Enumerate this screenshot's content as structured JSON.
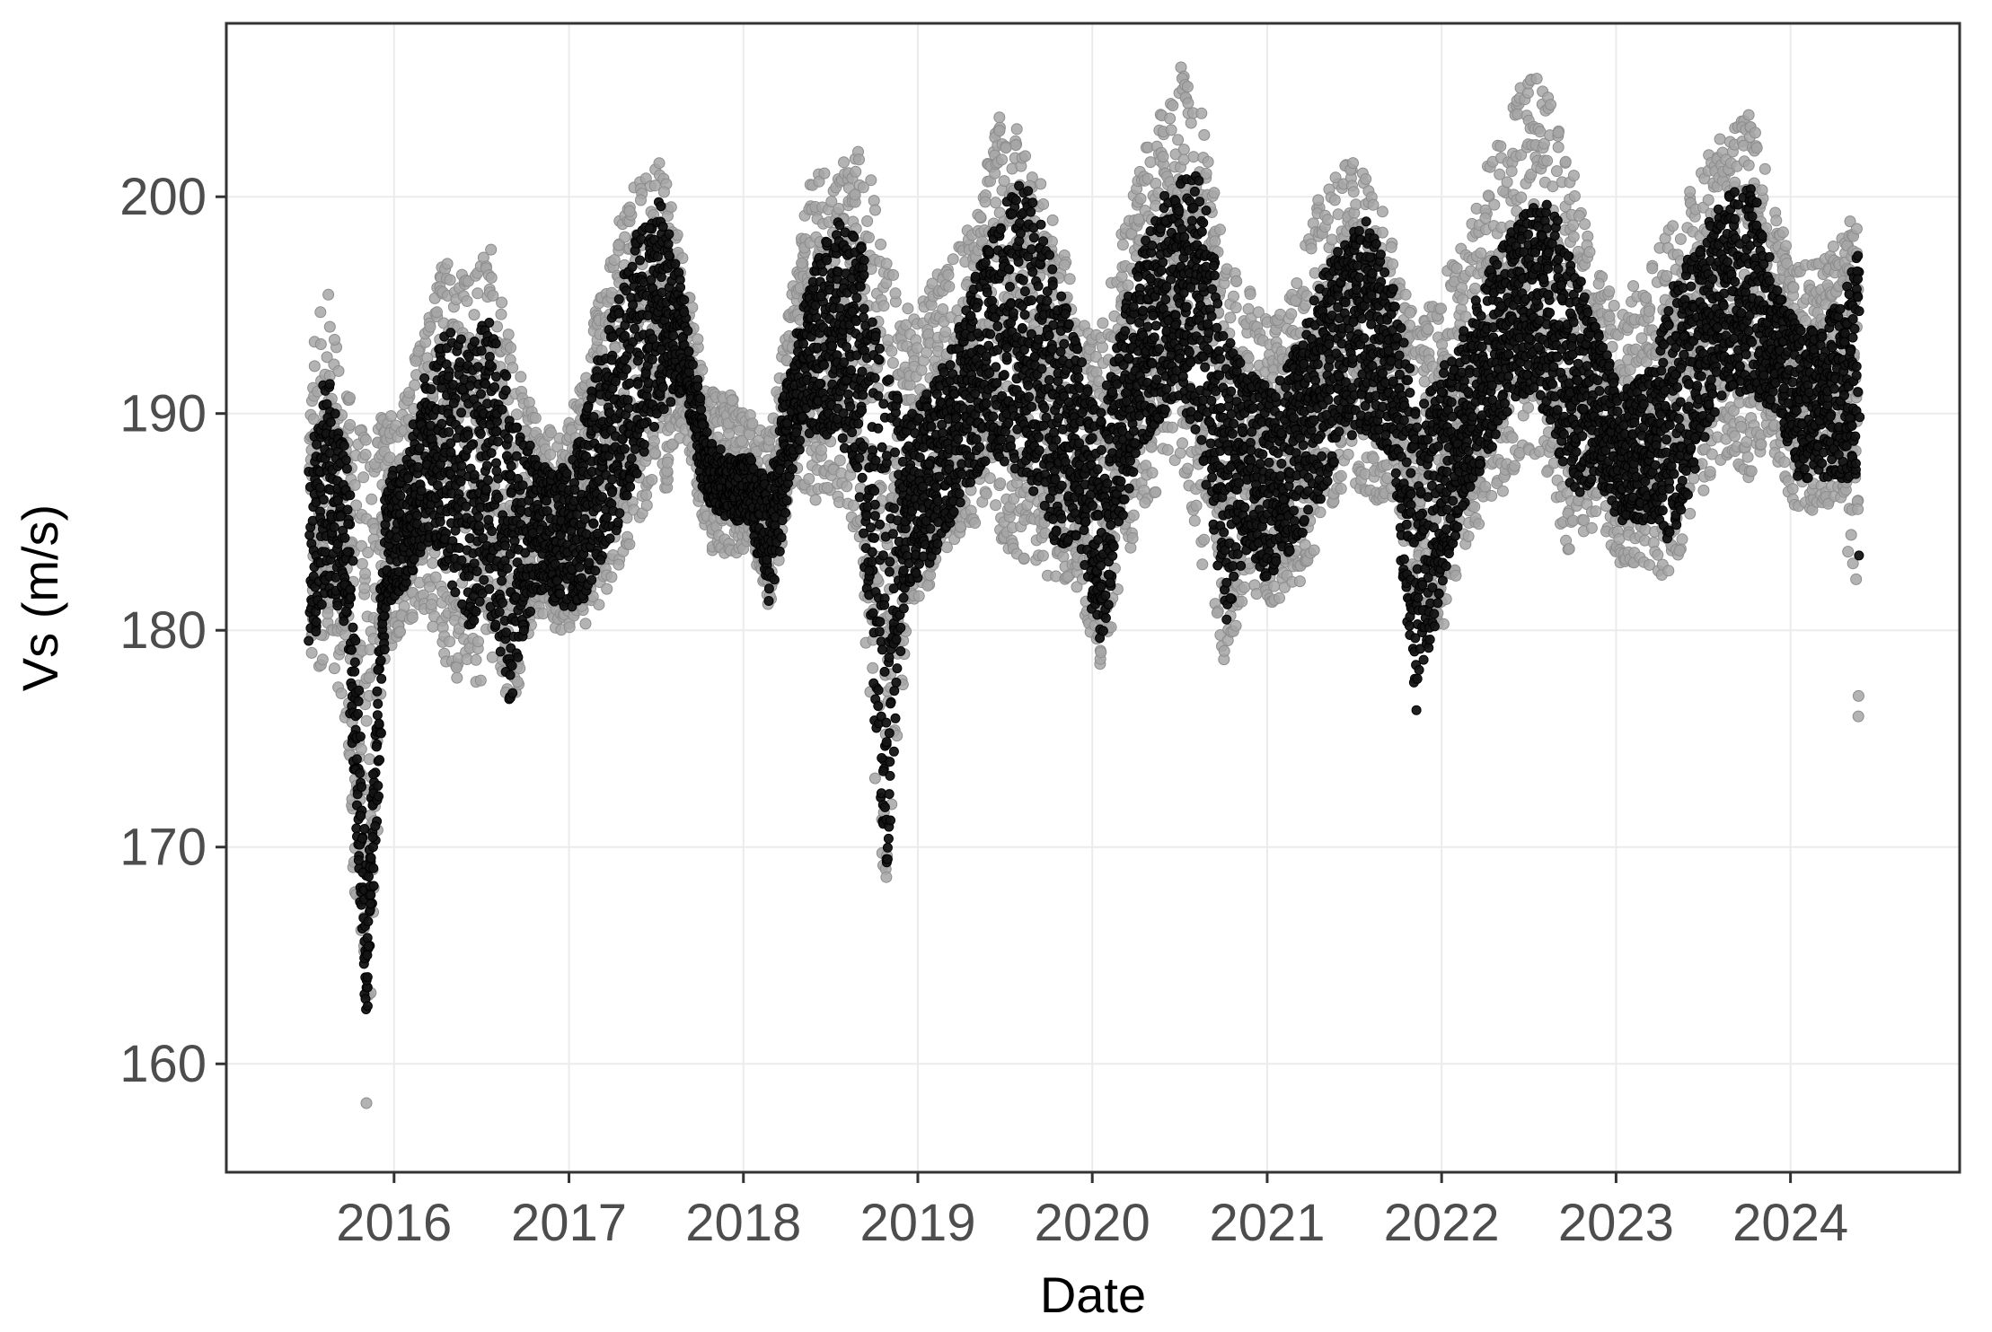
{
  "chart_data": {
    "type": "scatter",
    "title": "",
    "xlabel": "Date",
    "ylabel": "Vs (m/s)",
    "x_type": "date",
    "xlim": [
      "2015-01-15",
      "2024-12-20"
    ],
    "ylim": [
      155,
      208
    ],
    "x_ticks": [
      "2016",
      "2017",
      "2018",
      "2019",
      "2020",
      "2021",
      "2022",
      "2023",
      "2024"
    ],
    "y_ticks": [
      "160",
      "170",
      "180",
      "190",
      "200"
    ],
    "grid": true,
    "legend": "none",
    "colors": {
      "measured_points": "#a6a6a6",
      "measured_points_outline": "#8c8c8c",
      "fitted_points": "#141414",
      "grid": "#ebebeb",
      "axis": "#333333"
    },
    "series": [
      {
        "color": "#a6a6a6",
        "style": "dense vertical point clouds with spread (range per time)",
        "x": [
          "2015-07-10",
          "2015-08-15",
          "2015-09-25",
          "2015-11-05",
          "2015-12-15",
          "2016-01-25",
          "2016-03-10",
          "2016-04-20",
          "2016-06-10",
          "2016-07-20",
          "2016-09-05",
          "2016-10-20",
          "2016-12-10",
          "2017-01-25",
          "2017-03-10",
          "2017-04-20",
          "2017-06-01",
          "2017-07-15",
          "2017-09-01",
          "2017-10-15",
          "2017-12-01",
          "2018-01-15",
          "2018-02-25",
          "2018-04-15",
          "2018-06-01",
          "2018-07-15",
          "2018-09-01",
          "2018-10-25",
          "2018-12-10",
          "2019-01-25",
          "2019-03-10",
          "2019-04-25",
          "2019-06-15",
          "2019-08-15",
          "2019-10-15",
          "2019-12-01",
          "2020-01-20",
          "2020-03-10",
          "2020-05-01",
          "2020-07-01",
          "2020-08-20",
          "2020-10-01",
          "2020-11-20",
          "2021-01-10",
          "2021-03-01",
          "2021-04-20",
          "2021-06-10",
          "2021-08-01",
          "2021-09-20",
          "2021-11-10",
          "2022-01-01",
          "2022-02-20",
          "2022-04-15",
          "2022-06-10",
          "2022-08-10",
          "2022-10-01",
          "2022-11-20",
          "2023-01-10",
          "2023-03-15",
          "2023-05-01",
          "2023-06-20",
          "2023-08-15",
          "2023-10-10",
          "2023-12-01",
          "2024-01-20",
          "2024-03-10",
          "2024-05-01",
          "2024-05-25"
        ],
        "low": [
          177,
          179,
          175,
          158,
          179,
          180,
          181,
          178,
          177,
          178,
          176,
          181,
          180,
          180,
          181,
          183,
          185,
          186,
          189,
          184,
          183,
          184,
          181,
          187,
          186,
          186,
          184,
          167,
          181,
          182,
          184,
          185,
          184,
          183,
          182,
          182,
          178,
          183,
          186,
          188,
          183,
          178,
          182,
          181,
          182,
          184,
          187,
          186,
          186,
          181,
          180,
          184,
          185,
          188,
          187,
          183,
          185,
          183,
          183,
          182,
          186,
          188,
          187,
          188,
          185,
          186,
          185,
          174
        ],
        "high": [
          193,
          196,
          191,
          190,
          190,
          191,
          195,
          198,
          196,
          198,
          193,
          190,
          189,
          191,
          196,
          199,
          201,
          202,
          197,
          191,
          191,
          190,
          189,
          196,
          202,
          201,
          203,
          198,
          195,
          196,
          197,
          199,
          204,
          203,
          199,
          195,
          194,
          199,
          203,
          206,
          204,
          197,
          196,
          194,
          196,
          200,
          202,
          201,
          198,
          194,
          196,
          198,
          202,
          205,
          206,
          201,
          197,
          195,
          197,
          199,
          201,
          203,
          204,
          199,
          197,
          197,
          199,
          199
        ]
      },
      {
        "color": "#141414",
        "style": "dense vertical point clouds (narrower range)",
        "x": [
          "2015-07-10",
          "2015-08-15",
          "2015-09-25",
          "2015-11-05",
          "2015-12-15",
          "2016-01-25",
          "2016-03-10",
          "2016-04-20",
          "2016-06-10",
          "2016-07-20",
          "2016-09-05",
          "2016-10-20",
          "2016-12-10",
          "2017-01-25",
          "2017-03-10",
          "2017-04-20",
          "2017-06-01",
          "2017-07-15",
          "2017-09-01",
          "2017-10-15",
          "2017-12-01",
          "2018-01-15",
          "2018-02-25",
          "2018-04-15",
          "2018-06-01",
          "2018-07-15",
          "2018-09-01",
          "2018-10-25",
          "2018-12-10",
          "2019-01-25",
          "2019-03-10",
          "2019-04-25",
          "2019-06-15",
          "2019-08-15",
          "2019-10-15",
          "2019-12-01",
          "2020-01-20",
          "2020-03-10",
          "2020-05-01",
          "2020-07-01",
          "2020-08-20",
          "2020-10-01",
          "2020-11-20",
          "2021-01-10",
          "2021-03-01",
          "2021-04-20",
          "2021-06-10",
          "2021-08-01",
          "2021-09-20",
          "2021-11-10",
          "2022-01-01",
          "2022-02-20",
          "2022-04-15",
          "2022-06-10",
          "2022-08-10",
          "2022-10-01",
          "2022-11-20",
          "2023-01-10",
          "2023-03-15",
          "2023-05-01",
          "2023-06-20",
          "2023-08-15",
          "2023-10-10",
          "2023-12-01",
          "2024-01-20",
          "2024-03-10",
          "2024-05-01",
          "2024-05-25"
        ],
        "low": [
          179,
          182,
          180,
          162,
          181,
          182,
          184,
          182,
          180,
          181,
          176,
          182,
          181,
          181,
          183,
          185,
          188,
          190,
          191,
          186,
          185,
          185,
          181,
          188,
          189,
          189,
          187,
          168,
          182,
          183,
          185,
          187,
          188,
          187,
          184,
          184,
          179,
          186,
          189,
          191,
          188,
          180,
          184,
          182,
          184,
          186,
          189,
          189,
          188,
          176,
          182,
          186,
          188,
          191,
          190,
          186,
          187,
          185,
          185,
          184,
          188,
          191,
          191,
          190,
          187,
          187,
          187,
          182
        ],
        "high": [
          188,
          192,
          188,
          167,
          187,
          188,
          192,
          194,
          193,
          195,
          190,
          188,
          187,
          189,
          193,
          196,
          199,
          200,
          195,
          189,
          188,
          188,
          187,
          193,
          197,
          199,
          198,
          192,
          190,
          191,
          193,
          196,
          199,
          201,
          197,
          193,
          190,
          195,
          199,
          201,
          201,
          194,
          192,
          191,
          193,
          196,
          198,
          199,
          196,
          190,
          192,
          194,
          197,
          199,
          200,
          197,
          194,
          191,
          192,
          196,
          198,
          200,
          201,
          196,
          194,
          194,
          196,
          198
        ]
      }
    ]
  }
}
